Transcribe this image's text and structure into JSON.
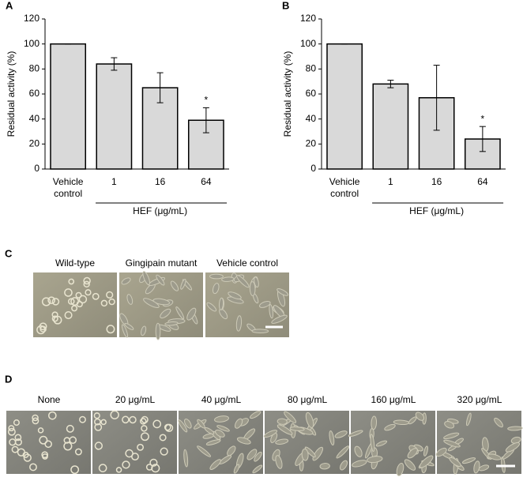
{
  "chart_data": [
    {
      "type": "bar",
      "panel": "A",
      "ylabel": "Residual activity (%)",
      "x_group_label": "HEF (μg/mL)",
      "categories": [
        "Vehicle control",
        "1",
        "16",
        "64"
      ],
      "values": [
        100,
        84,
        65,
        39
      ],
      "errors": [
        0,
        5,
        12,
        10
      ],
      "markers": [
        null,
        null,
        null,
        "*"
      ],
      "color": "#d9d9d9",
      "ylim": [
        0,
        120
      ],
      "yticks": [
        0,
        20,
        40,
        60,
        80,
        100,
        120
      ]
    },
    {
      "type": "bar",
      "panel": "B",
      "ylabel": "Residual activity (%)",
      "x_group_label": "HEF (μg/mL)",
      "categories": [
        "Vehicle control",
        "1",
        "16",
        "64"
      ],
      "values": [
        100,
        68,
        57,
        24
      ],
      "errors": [
        0,
        3,
        26,
        10
      ],
      "markers": [
        null,
        null,
        null,
        "*"
      ],
      "color": "#d9d9d9",
      "ylim": [
        0,
        120
      ],
      "yticks": [
        0,
        20,
        40,
        60,
        80,
        100,
        120
      ]
    }
  ],
  "panel_c": {
    "label": "C",
    "images": [
      "Wild-type",
      "Gingipain mutant",
      "Vehicle control"
    ]
  },
  "panel_d": {
    "label": "D",
    "images": [
      "None",
      "20 μg/mL",
      "40 μg/mL",
      "80 μg/mL",
      "160 μg/mL",
      "320 μg/mL"
    ]
  }
}
